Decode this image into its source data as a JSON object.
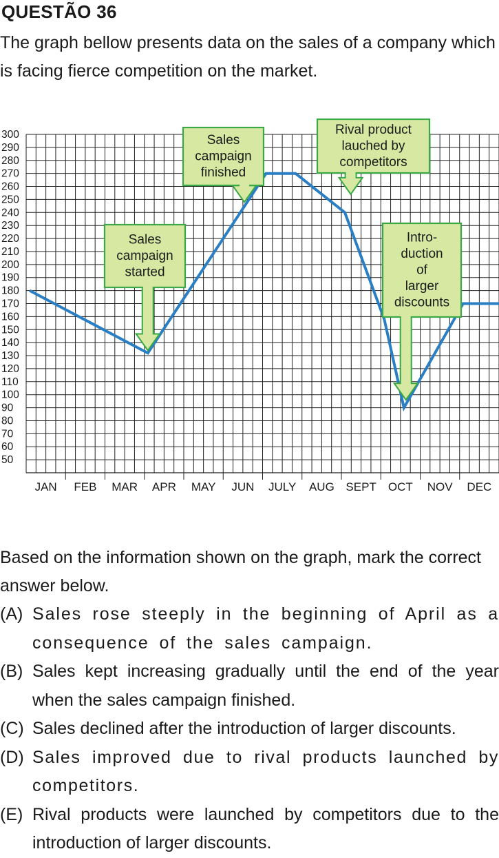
{
  "question": {
    "title": "QUESTÃO 36",
    "intro": "The graph bellow presents data on the sales of a company which is facing fierce competition on the market.",
    "prompt": "Based on the information shown on the graph, mark the correct answer below.",
    "options": [
      {
        "letter": "(A)",
        "text": "Sales rose steeply in the beginning of April as a consequence of the sales campaign."
      },
      {
        "letter": "(B)",
        "text": "Sales kept increasing gradually until the end of the year when the sales campaign finished."
      },
      {
        "letter": "(C)",
        "text": "Sales declined after the introduction of larger discounts."
      },
      {
        "letter": "(D)",
        "text": "Sales improved due to rival products launched by competitors."
      },
      {
        "letter": "(E)",
        "text": "Rival products were launched by competitors due to the introduction of larger discounts."
      }
    ]
  },
  "chart_data": {
    "type": "line",
    "categories": [
      "JAN",
      "FEB",
      "MAR",
      "APR",
      "MAY",
      "JUN",
      "JULY",
      "AUG",
      "SEPT",
      "OCT",
      "NOV",
      "DEC"
    ],
    "yticks": [
      300,
      290,
      280,
      270,
      260,
      250,
      240,
      230,
      220,
      210,
      200,
      190,
      180,
      170,
      160,
      150,
      140,
      130,
      120,
      110,
      100,
      90,
      80,
      70,
      60,
      50
    ],
    "ylim": [
      40,
      300
    ],
    "grid": true,
    "line_color": "#2a7fc4",
    "points": [
      {
        "month": 0.0,
        "value": 180
      },
      {
        "month": 3.0,
        "value": 132
      },
      {
        "month": 6.0,
        "value": 270
      },
      {
        "month": 6.75,
        "value": 270
      },
      {
        "month": 8.0,
        "value": 240
      },
      {
        "month": 9.0,
        "value": 158
      },
      {
        "month": 9.5,
        "value": 90
      },
      {
        "month": 11.0,
        "value": 170
      },
      {
        "month": 12.0,
        "value": 170
      }
    ],
    "annotations": [
      {
        "lines": [
          "Sales",
          "campaign",
          "started"
        ],
        "points_to_month": 3.0,
        "points_to_value": 134
      },
      {
        "lines": [
          "Sales",
          "campaign",
          "finished"
        ],
        "points_to_month": 5.45,
        "points_to_value": 248
      },
      {
        "lines": [
          "Rival product",
          "lauched by",
          "competitors"
        ],
        "points_to_month": 8.15,
        "points_to_value": 254
      },
      {
        "lines": [
          "Intro-",
          "duction",
          "of",
          "larger",
          "discounts"
        ],
        "points_to_month": 9.55,
        "points_to_value": 96
      }
    ],
    "annotation_fill": "#d6e8a2",
    "annotation_border": "#3aa845"
  }
}
